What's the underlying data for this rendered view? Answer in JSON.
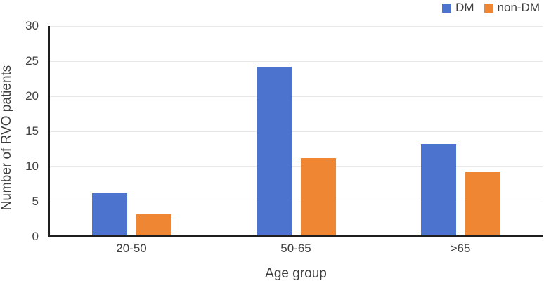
{
  "chart_data": {
    "type": "bar",
    "categories": [
      "20-50",
      "50-65",
      ">65"
    ],
    "series": [
      {
        "name": "DM",
        "color": "#4C74CE",
        "values": [
          6,
          24,
          13
        ]
      },
      {
        "name": "non-DM",
        "color": "#EE8633",
        "values": [
          3,
          11,
          9
        ]
      }
    ],
    "title": "",
    "xlabel": "Age group",
    "ylabel": "Number of RVO patients",
    "ylim": [
      0,
      30
    ],
    "ytick_step": 5,
    "yticks": [
      "0",
      "5",
      "10",
      "15",
      "20",
      "25",
      "30"
    ],
    "grid": true,
    "legend_position": "top-right",
    "colors": {
      "axis_line": "#1f1f1f",
      "gridline": "#e8e8e8",
      "tick_text": "#404040",
      "title_text": "#3d3d3d",
      "background": "#ffffff"
    }
  }
}
